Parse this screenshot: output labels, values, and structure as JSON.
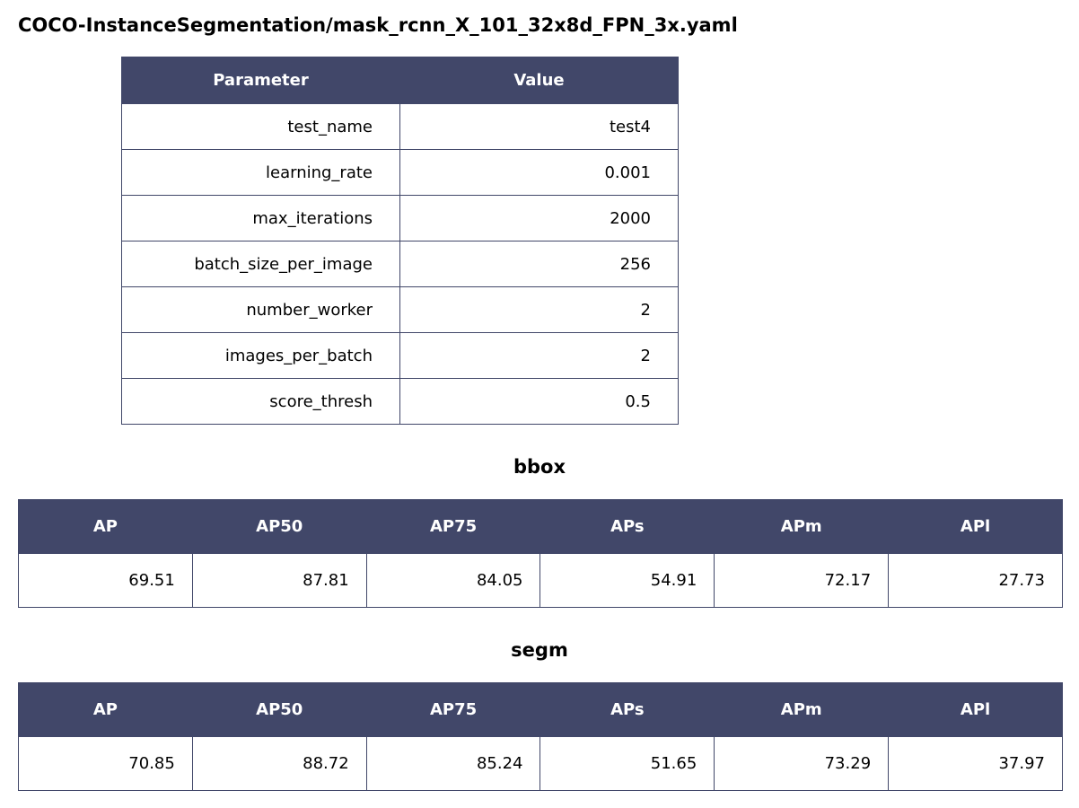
{
  "title": "COCO-InstanceSegmentation/mask_rcnn_X_101_32x8d_FPN_3x.yaml",
  "colors": {
    "header_bg": "#414769",
    "header_text": "#ffffff",
    "border": "#414769"
  },
  "params": {
    "headers": [
      "Parameter",
      "Value"
    ],
    "rows": [
      {
        "name": "test_name",
        "value": "test4"
      },
      {
        "name": "learning_rate",
        "value": "0.001"
      },
      {
        "name": "max_iterations",
        "value": "2000"
      },
      {
        "name": "batch_size_per_image",
        "value": "256"
      },
      {
        "name": "number_worker",
        "value": "2"
      },
      {
        "name": "images_per_batch",
        "value": "2"
      },
      {
        "name": "score_thresh",
        "value": "0.5"
      }
    ]
  },
  "bbox": {
    "title": "bbox",
    "headers": [
      "AP",
      "AP50",
      "AP75",
      "APs",
      "APm",
      "APl"
    ],
    "values": [
      "69.51",
      "87.81",
      "84.05",
      "54.91",
      "72.17",
      "27.73"
    ]
  },
  "segm": {
    "title": "segm",
    "headers": [
      "AP",
      "AP50",
      "AP75",
      "APs",
      "APm",
      "APl"
    ],
    "values": [
      "70.85",
      "88.72",
      "85.24",
      "51.65",
      "73.29",
      "37.97"
    ]
  }
}
